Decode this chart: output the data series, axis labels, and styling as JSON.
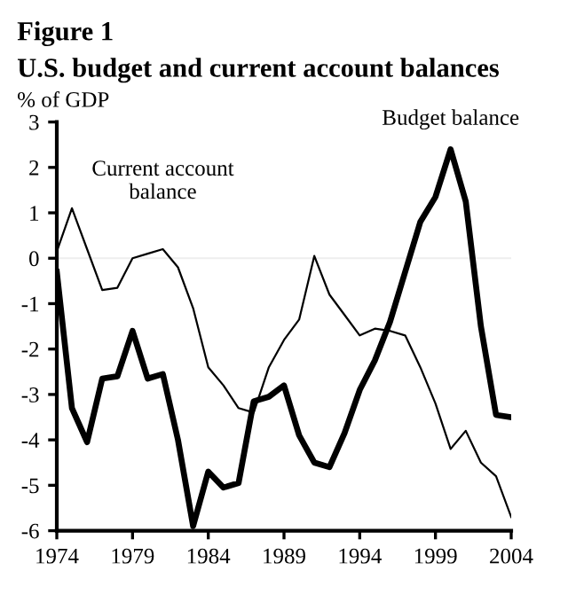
{
  "chart_data": {
    "type": "line",
    "title": "Figure 1",
    "subtitle": "U.S. budget and current account balances",
    "ylabel": "% of GDP",
    "x": [
      1974,
      1975,
      1976,
      1977,
      1978,
      1979,
      1980,
      1981,
      1982,
      1983,
      1984,
      1985,
      1986,
      1987,
      1988,
      1989,
      1990,
      1991,
      1992,
      1993,
      1994,
      1995,
      1996,
      1997,
      1998,
      1999,
      2000,
      2001,
      2002,
      2003,
      2004
    ],
    "series": [
      {
        "name": "Budget balance",
        "color": "#000000",
        "values": [
          -0.3,
          -3.3,
          -4.05,
          -2.65,
          -2.6,
          -1.6,
          -2.65,
          -2.55,
          -4.0,
          -5.9,
          -4.7,
          -5.05,
          -4.95,
          -3.15,
          -3.05,
          -2.8,
          -3.9,
          -4.5,
          -4.6,
          -3.85,
          -2.9,
          -2.25,
          -1.4,
          -0.3,
          0.8,
          1.35,
          2.4,
          1.25,
          -1.5,
          -3.45,
          -3.5
        ]
      },
      {
        "name": "Current account\nbalance",
        "color": "#000000",
        "values": [
          0.15,
          1.1,
          0.2,
          -0.7,
          -0.65,
          0.0,
          0.1,
          0.2,
          -0.2,
          -1.1,
          -2.4,
          -2.8,
          -3.3,
          -3.4,
          -2.4,
          -1.8,
          -1.35,
          0.05,
          -0.8,
          -1.25,
          -1.7,
          -1.55,
          -1.6,
          -1.7,
          -2.4,
          -3.2,
          -4.2,
          -3.8,
          -4.5,
          -4.8,
          -5.7
        ]
      }
    ],
    "xlim": [
      1974,
      2004
    ],
    "xticks": [
      1974,
      1979,
      1984,
      1989,
      1994,
      1999,
      2004
    ],
    "ylim": [
      -6,
      3
    ],
    "yticks": [
      -6,
      -5,
      -4,
      -3,
      -2,
      -1,
      0,
      1,
      2,
      3
    ],
    "ref_lines": [
      {
        "axis": "y",
        "value": 0,
        "color": "#eeeeee"
      }
    ],
    "grid": false,
    "legend": false,
    "marker": "none",
    "line_style": "solid"
  }
}
